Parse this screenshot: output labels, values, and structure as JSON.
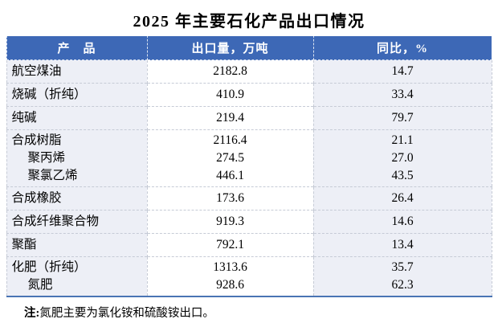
{
  "title": "2025 年主要石化产品出口情况",
  "table": {
    "columns": [
      "产　品",
      "出口量，万吨",
      "同比，%"
    ],
    "groups": [
      {
        "rows": [
          {
            "name": "航空煤油",
            "volume": "2182.8",
            "yoy": "14.7",
            "indent": false
          }
        ]
      },
      {
        "rows": [
          {
            "name": "烧碱（折纯）",
            "volume": "410.9",
            "yoy": "33.4",
            "indent": false
          }
        ]
      },
      {
        "rows": [
          {
            "name": "纯碱",
            "volume": "219.4",
            "yoy": "79.7",
            "indent": false
          }
        ]
      },
      {
        "rows": [
          {
            "name": "合成树脂",
            "volume": "2116.4",
            "yoy": "21.1",
            "indent": false
          },
          {
            "name": "聚丙烯",
            "volume": "274.5",
            "yoy": "27.0",
            "indent": true
          },
          {
            "name": "聚氯乙烯",
            "volume": "446.1",
            "yoy": "43.5",
            "indent": true
          }
        ]
      },
      {
        "rows": [
          {
            "name": "合成橡胶",
            "volume": "173.6",
            "yoy": "26.4",
            "indent": false
          }
        ]
      },
      {
        "rows": [
          {
            "name": "合成纤维聚合物",
            "volume": "919.3",
            "yoy": "14.6",
            "indent": false
          }
        ]
      },
      {
        "rows": [
          {
            "name": "聚酯",
            "volume": "792.1",
            "yoy": "13.4",
            "indent": false
          }
        ]
      },
      {
        "rows": [
          {
            "name": "化肥（折纯）",
            "volume": "1313.6",
            "yoy": "35.7",
            "indent": false
          },
          {
            "name": "氮肥",
            "volume": "928.6",
            "yoy": "62.3",
            "indent": true
          }
        ]
      }
    ]
  },
  "note": {
    "label": "注:",
    "text": "氮肥主要为氯化铵和硫酸铵出口。"
  },
  "colors": {
    "header_bg": "#3D68B6",
    "header_text": "#FFFFFF",
    "row_tint": "#EDEFF6",
    "dashed_border": "#C6CBD6",
    "bottom_rule": "#4A74B4",
    "body_text": "#000000"
  },
  "chart_data": {
    "type": "table",
    "title": "2025 年主要石化产品出口情况",
    "columns": [
      "产品",
      "出口量，万吨",
      "同比，%"
    ],
    "rows": [
      [
        "航空煤油",
        2182.8,
        14.7
      ],
      [
        "烧碱（折纯）",
        410.9,
        33.4
      ],
      [
        "纯碱",
        219.4,
        79.7
      ],
      [
        "合成树脂",
        2116.4,
        21.1
      ],
      [
        "聚丙烯",
        274.5,
        27.0
      ],
      [
        "聚氯乙烯",
        446.1,
        43.5
      ],
      [
        "合成橡胶",
        173.6,
        26.4
      ],
      [
        "合成纤维聚合物",
        919.3,
        14.6
      ],
      [
        "聚酯",
        792.1,
        13.4
      ],
      [
        "化肥（折纯）",
        1313.6,
        35.7
      ],
      [
        "氮肥",
        928.6,
        62.3
      ]
    ],
    "footnote": "注:氮肥主要为氯化铵和硫酸铵出口。"
  }
}
